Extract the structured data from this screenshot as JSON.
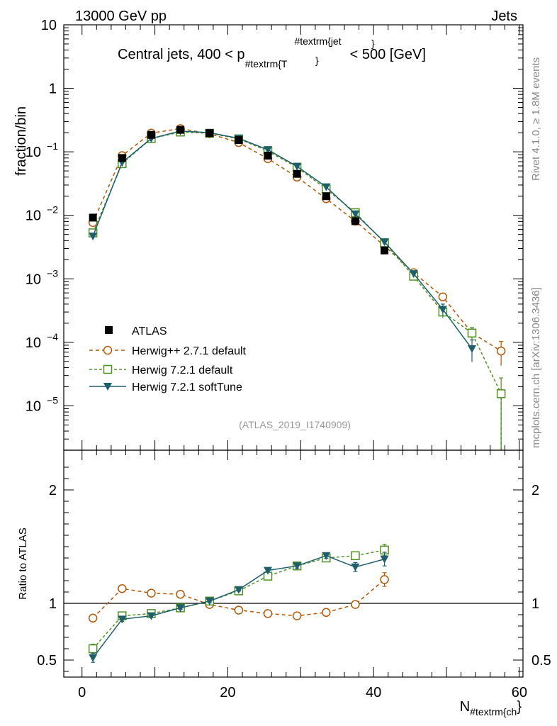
{
  "header": {
    "left": "13000 GeV pp",
    "right": "Jets"
  },
  "side_labels": {
    "rivet": "Rivet 4.1.0, ≥ 1.8M events",
    "mcplots": "mcplots.cern.ch [arXiv:1306.3436]"
  },
  "chart_data": [
    {
      "type": "scatter",
      "panel": "main",
      "title_main": "Central jets, 400 < p",
      "title_sub": "#textrm{T",
      "title_sup": "#textrm{jet",
      "title_tail": "< 500 [GeV]",
      "ylabel": "fraction/bin",
      "yscale": "log",
      "ylim": [
        2e-06,
        10
      ],
      "xlim": [
        -2.5,
        60.5
      ],
      "yticks": [
        {
          "v": 10,
          "m": "10",
          "e": ""
        },
        {
          "v": 1,
          "m": "1",
          "e": ""
        },
        {
          "v": 0.1,
          "m": "10",
          "e": "−1"
        },
        {
          "v": 0.01,
          "m": "10",
          "e": "−2"
        },
        {
          "v": 0.001,
          "m": "10",
          "e": "−3"
        },
        {
          "v": 0.0001,
          "m": "10",
          "e": "−4"
        },
        {
          "v": 1e-05,
          "m": "10",
          "e": "−5"
        }
      ],
      "watermark": "(ATLAS_2019_I1740909)",
      "series": [
        {
          "name": "ATLAS",
          "key": "atlas",
          "color": "#000000",
          "x": [
            1.5,
            5.5,
            9.5,
            13.5,
            17.5,
            21.5,
            25.5,
            29.5,
            33.5,
            37.5,
            41.5
          ],
          "y": [
            0.0092,
            0.08,
            0.185,
            0.222,
            0.197,
            0.153,
            0.087,
            0.045,
            0.02,
            0.0081,
            0.0028
          ]
        },
        {
          "name": "Herwig++ 2.7.1 default",
          "key": "hpp",
          "color": "#b35806",
          "x": [
            1.5,
            5.5,
            9.5,
            13.5,
            17.5,
            21.5,
            25.5,
            29.5,
            33.5,
            37.5,
            41.5,
            45.5,
            49.5,
            53.5,
            57.5
          ],
          "y": [
            0.0077,
            0.087,
            0.197,
            0.232,
            0.193,
            0.14,
            0.078,
            0.04,
            0.0183,
            0.0081,
            0.0033,
            0.00125,
            0.00052,
            0.00014,
            7.3e-05
          ],
          "err": [
            0,
            0,
            0,
            0,
            0,
            0,
            0,
            0,
            0,
            0,
            0,
            0,
            4e-05,
            3e-05,
            3e-05
          ]
        },
        {
          "name": "Herwig 7.2.1 default",
          "key": "h7def",
          "color": "#4d9221",
          "x": [
            1.5,
            5.5,
            9.5,
            13.5,
            17.5,
            21.5,
            25.5,
            29.5,
            33.5,
            37.5,
            41.5,
            45.5,
            49.5,
            53.5,
            57.5
          ],
          "y": [
            0.0053,
            0.065,
            0.162,
            0.205,
            0.196,
            0.16,
            0.103,
            0.057,
            0.026,
            0.011,
            0.0037,
            0.0011,
            0.0003,
            0.00014,
            1.55e-05
          ],
          "err": [
            0,
            0,
            0,
            0,
            0,
            0,
            0,
            0,
            0,
            0,
            0,
            0,
            6e-05,
            3e-05,
            1.2e-05
          ]
        },
        {
          "name": "Herwig 7.2.1 softTune",
          "key": "h7soft",
          "color": "#1f5f6b",
          "x": [
            1.5,
            5.5,
            9.5,
            13.5,
            17.5,
            21.5,
            25.5,
            29.5,
            33.5,
            37.5,
            41.5,
            45.5,
            49.5,
            53.5
          ],
          "y": [
            0.0047,
            0.068,
            0.162,
            0.212,
            0.2,
            0.163,
            0.108,
            0.059,
            0.028,
            0.0105,
            0.0038,
            0.0012,
            0.00033,
            7.9e-05
          ],
          "err": [
            0,
            0,
            0,
            0,
            0,
            0,
            0,
            0,
            0,
            0,
            0,
            0,
            7e-05,
            3e-05
          ]
        }
      ]
    },
    {
      "type": "scatter",
      "panel": "ratio",
      "ylabel": "Ratio to ATLAS",
      "xlabel_main": "N",
      "xlabel_sub": "#textrm{ch",
      "xlim": [
        -2.5,
        60.5
      ],
      "ylim": [
        0.35,
        2.35
      ],
      "yticks": [
        0.5,
        1,
        2
      ],
      "ytick_labels": [
        "0.5",
        "1",
        "2"
      ],
      "xticks": [
        0,
        20,
        40,
        60
      ],
      "xtick_labels": [
        "0",
        "20",
        "40",
        "60"
      ],
      "reference": 1,
      "series": [
        {
          "key": "hpp",
          "x": [
            1.5,
            5.5,
            9.5,
            13.5,
            17.5,
            21.5,
            25.5,
            29.5,
            33.5,
            37.5,
            41.5
          ],
          "y": [
            0.87,
            1.13,
            1.09,
            1.08,
            0.99,
            0.94,
            0.91,
            0.89,
            0.92,
            0.99,
            1.21
          ],
          "err": [
            0.03,
            0.02,
            0.015,
            0.015,
            0.012,
            0.012,
            0.012,
            0.012,
            0.015,
            0.03,
            0.06
          ]
        },
        {
          "key": "h7def",
          "x": [
            1.5,
            5.5,
            9.5,
            13.5,
            17.5,
            21.5,
            25.5,
            29.5,
            33.5,
            37.5,
            41.5
          ],
          "y": [
            0.6,
            0.89,
            0.91,
            0.96,
            1.02,
            1.11,
            1.24,
            1.33,
            1.4,
            1.42,
            1.47
          ],
          "err": [
            0.04,
            0.02,
            0.015,
            0.012,
            0.012,
            0.012,
            0.015,
            0.02,
            0.025,
            0.03,
            0.05
          ]
        },
        {
          "key": "h7soft",
          "x": [
            1.5,
            5.5,
            9.5,
            13.5,
            17.5,
            21.5,
            25.5,
            29.5,
            33.5,
            37.5,
            41.5
          ],
          "y": [
            0.52,
            0.86,
            0.89,
            0.96,
            1.02,
            1.12,
            1.29,
            1.33,
            1.42,
            1.32,
            1.39
          ],
          "err": [
            0.04,
            0.02,
            0.015,
            0.012,
            0.012,
            0.012,
            0.015,
            0.02,
            0.025,
            0.04,
            0.06
          ]
        }
      ]
    }
  ]
}
